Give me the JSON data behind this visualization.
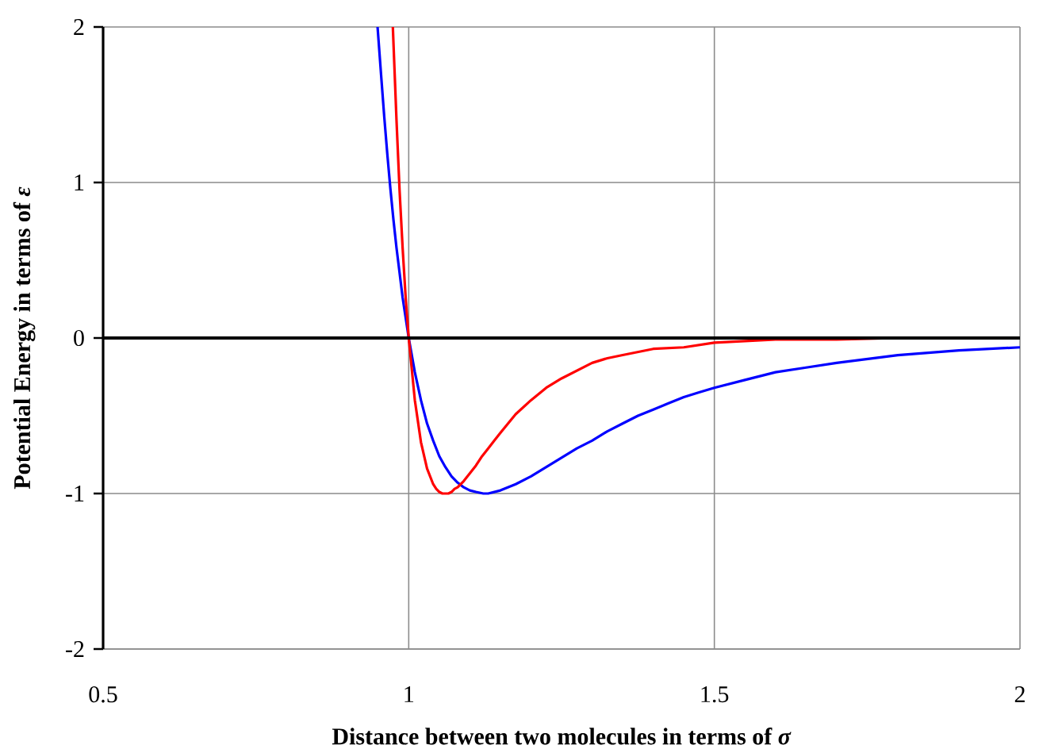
{
  "chart_data": {
    "type": "line",
    "xlabel": "Distance between two molecules in terms of *σ*",
    "ylabel": "Potential Energy in terms of *ε*",
    "series": [
      {
        "color": "#0000ff",
        "x": [
          0.949,
          0.955,
          0.96,
          0.965,
          0.97,
          0.975,
          0.98,
          0.985,
          0.99,
          0.995,
          1.0,
          1.01,
          1.02,
          1.03,
          1.04,
          1.05,
          1.06,
          1.07,
          1.08,
          1.09,
          1.1,
          1.11,
          1.122,
          1.13,
          1.15,
          1.175,
          1.2,
          1.225,
          1.25,
          1.275,
          1.3,
          1.325,
          1.35,
          1.375,
          1.4,
          1.425,
          1.45,
          1.475,
          1.5,
          1.55,
          1.6,
          1.65,
          1.7,
          1.8,
          1.9,
          2.0
        ],
        "values": [
          2.0,
          1.68,
          1.42,
          1.18,
          0.96,
          0.76,
          0.58,
          0.42,
          0.26,
          0.13,
          0.0,
          -0.22,
          -0.4,
          -0.55,
          -0.66,
          -0.76,
          -0.83,
          -0.89,
          -0.93,
          -0.96,
          -0.98,
          -0.99,
          -1.0,
          -1.0,
          -0.98,
          -0.94,
          -0.89,
          -0.83,
          -0.77,
          -0.71,
          -0.66,
          -0.6,
          -0.55,
          -0.5,
          -0.46,
          -0.42,
          -0.38,
          -0.35,
          -0.32,
          -0.27,
          -0.22,
          -0.19,
          -0.16,
          -0.11,
          -0.08,
          -0.06
        ]
      },
      {
        "color": "#ff0000",
        "x": [
          0.974,
          0.977,
          0.98,
          0.985,
          0.99,
          0.995,
          1.0,
          1.01,
          1.02,
          1.03,
          1.04,
          1.045,
          1.05,
          1.055,
          1.059,
          1.065,
          1.07,
          1.075,
          1.08,
          1.09,
          1.1,
          1.11,
          1.12,
          1.13,
          1.14,
          1.15,
          1.175,
          1.2,
          1.225,
          1.25,
          1.275,
          1.3,
          1.325,
          1.35,
          1.4,
          1.45,
          1.5,
          1.55,
          1.6,
          1.7,
          1.8,
          2.0
        ],
        "values": [
          2.0,
          1.7,
          1.4,
          0.95,
          0.58,
          0.26,
          0.0,
          -0.4,
          -0.67,
          -0.84,
          -0.94,
          -0.97,
          -0.99,
          -1.0,
          -1.0,
          -1.0,
          -0.99,
          -0.97,
          -0.96,
          -0.92,
          -0.87,
          -0.82,
          -0.76,
          -0.71,
          -0.66,
          -0.61,
          -0.49,
          -0.4,
          -0.32,
          -0.26,
          -0.21,
          -0.16,
          -0.13,
          -0.11,
          -0.07,
          -0.06,
          -0.03,
          -0.02,
          -0.01,
          -0.01,
          0.0,
          0.0
        ]
      }
    ],
    "xlim": [
      0.5,
      2
    ],
    "ylim": [
      -2,
      2
    ],
    "xticks": [
      0.5,
      1,
      1.5,
      2
    ],
    "yticks": [
      -2,
      -1,
      0,
      1,
      2
    ],
    "grid": true,
    "line_style": "solid",
    "ref_lines": [
      {
        "axis": "y",
        "value": 0,
        "color": "#000000"
      }
    ]
  }
}
